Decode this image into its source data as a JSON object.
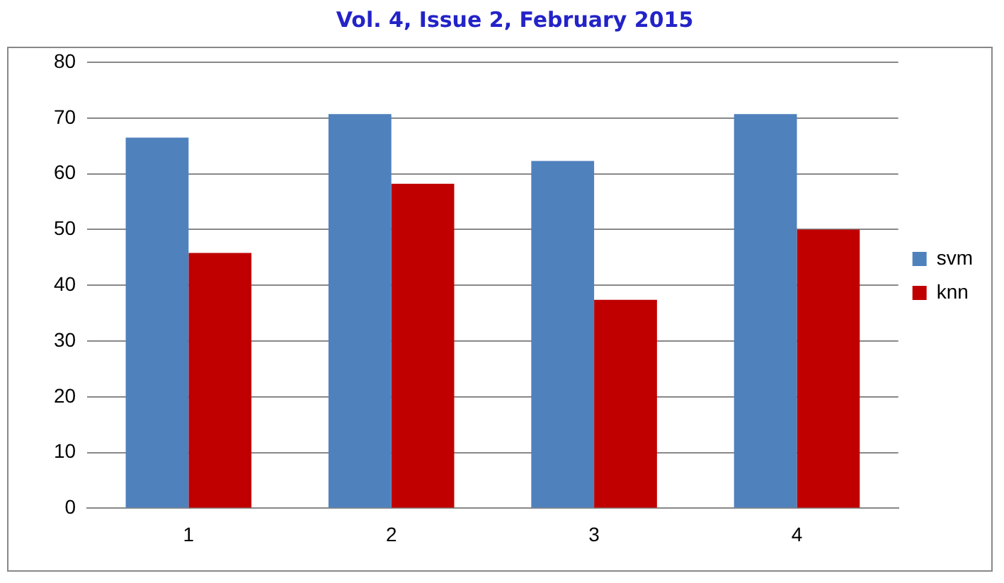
{
  "chart_data": {
    "type": "bar",
    "title": "Vol. 4, Issue 2, February 2015",
    "categories": [
      "1",
      "2",
      "3",
      "4"
    ],
    "series": [
      {
        "name": "svm",
        "color": "#4f81bd",
        "values": [
          66.5,
          70.7,
          62.3,
          70.7
        ]
      },
      {
        "name": "knn",
        "color": "#c00000",
        "values": [
          45.8,
          58.2,
          37.4,
          50
        ]
      }
    ],
    "ylim": [
      0,
      80
    ],
    "yticks": [
      0,
      10,
      20,
      30,
      40,
      50,
      60,
      70,
      80
    ],
    "grid": "y",
    "legend": "right"
  }
}
